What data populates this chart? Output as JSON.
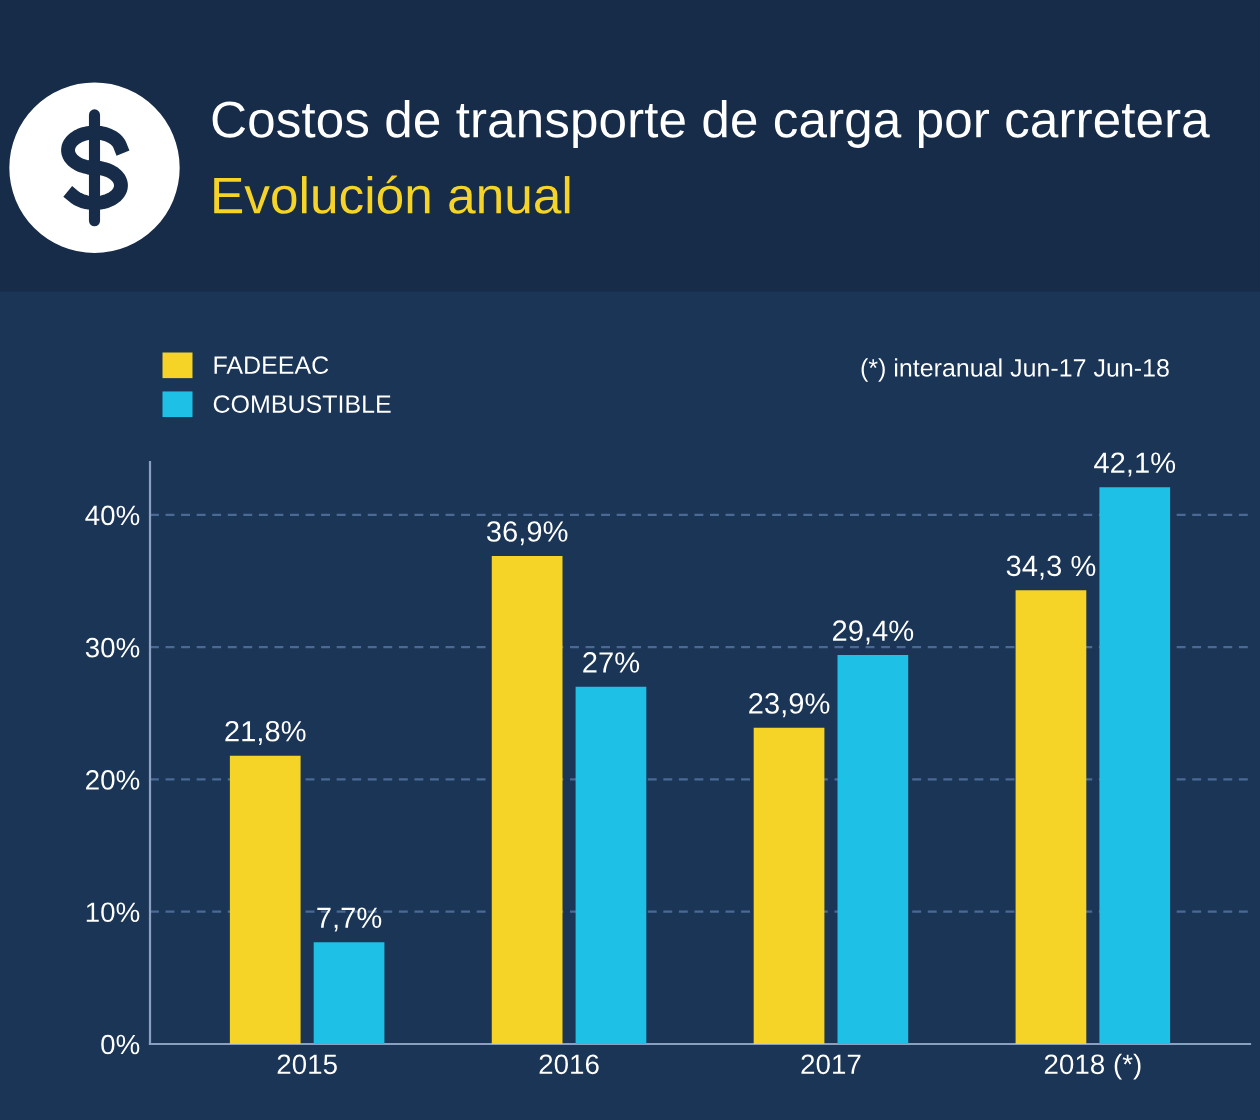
{
  "chart_data": {
    "type": "bar",
    "title": "Costos de transporte de carga por carretera",
    "subtitle": "Evolución anual",
    "categories": [
      "2015",
      "2016",
      "2017",
      "2018 (*)"
    ],
    "series": [
      {
        "name": "FADEEAC",
        "color": "#f5d327",
        "values": [
          21.8,
          36.9,
          23.9,
          34.3
        ],
        "value_labels": [
          "21,8%",
          "36,9%",
          "23,9%",
          "34,3 %"
        ]
      },
      {
        "name": "COMBUSTIBLE",
        "color": "#1ec0e6",
        "values": [
          7.7,
          27,
          29.4,
          42.1
        ],
        "value_labels": [
          "7,7%",
          "27%",
          "29,4%",
          "42,1%"
        ]
      }
    ],
    "ylim": [
      0,
      44
    ],
    "yticks": [
      {
        "value": 0,
        "label": "0%"
      },
      {
        "value": 10,
        "label": "10%"
      },
      {
        "value": 20,
        "label": "20%"
      },
      {
        "value": 30,
        "label": "30%"
      },
      {
        "value": 40,
        "label": "40%"
      }
    ],
    "grid": "y",
    "legend": "top left",
    "annotations": [
      "(*) interanual Jun-17 Jun-18"
    ]
  }
}
